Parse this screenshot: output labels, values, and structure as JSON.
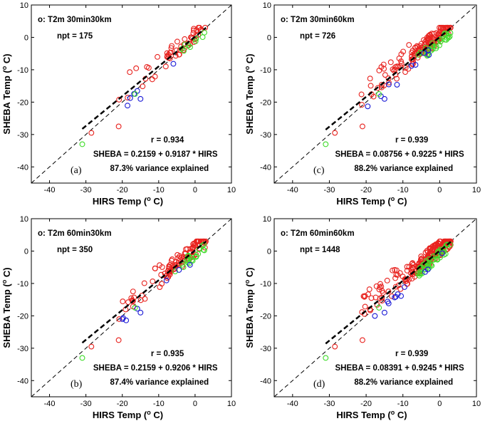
{
  "chart_data": [
    {
      "type": "scatter",
      "panel_label": "(a)",
      "legend": "o: T2m 30min30km",
      "npt": "npt = 175",
      "r_text": "r = 0.934",
      "fit_text": "SHEBA = 0.2159 + 0.9187 * HIRS",
      "variance_text": "87.3% variance explained",
      "xlabel": "HIRS Temp (",
      "xlabel_sup": "o",
      "xlabel_tail": " C)",
      "ylabel": "SHEBA Temp (",
      "ylabel_sup": "o",
      "ylabel_tail": " C)",
      "xlim": [
        -45,
        10
      ],
      "ylim": [
        -45,
        10
      ],
      "xticks": [
        "-40",
        "-30",
        "-20",
        "-10",
        "0",
        "10"
      ],
      "yticks": [
        "10",
        "0",
        "-10",
        "-20",
        "-30",
        "-40"
      ],
      "fit": {
        "intercept": 0.2159,
        "slope": 0.9187,
        "x_range": [
          -31,
          3
        ]
      },
      "one_to_one": true,
      "density": 1,
      "colors": {
        "red": "#e8231f",
        "green": "#3fdc2a",
        "blue": "#1a1ad6"
      }
    },
    {
      "type": "scatter",
      "panel_label": "(c)",
      "legend": "o: T2m 30min60km",
      "npt": "npt = 726",
      "r_text": "r = 0.939",
      "fit_text": "SHEBA = 0.08756 + 0.9225 * HIRS",
      "variance_text": "88.2% variance explained",
      "xlabel": "HIRS Temp (",
      "xlabel_sup": "o",
      "xlabel_tail": " C)",
      "ylabel": "SHEBA Temp (",
      "ylabel_sup": "o",
      "ylabel_tail": " C)",
      "xlim": [
        -45,
        10
      ],
      "ylim": [
        -45,
        10
      ],
      "xticks": [
        "-40",
        "-30",
        "-20",
        "-10",
        "0",
        "10"
      ],
      "yticks": [
        "10",
        "0",
        "-10",
        "-20",
        "-30",
        "-40"
      ],
      "fit": {
        "intercept": 0.08756,
        "slope": 0.9225,
        "x_range": [
          -31,
          3
        ]
      },
      "one_to_one": true,
      "density": 3,
      "colors": {
        "red": "#e8231f",
        "green": "#3fdc2a",
        "blue": "#1a1ad6"
      }
    },
    {
      "type": "scatter",
      "panel_label": "(b)",
      "legend": "o: T2m 60min30km",
      "npt": "npt = 350",
      "r_text": "r = 0.935",
      "fit_text": "SHEBA = 0.2159 + 0.9206 * HIRS",
      "variance_text": "87.4% variance explained",
      "xlabel": "HIRS Temp (",
      "xlabel_sup": "o",
      "xlabel_tail": " C)",
      "ylabel": "SHEBA Temp (",
      "ylabel_sup": "o",
      "ylabel_tail": " C)",
      "xlim": [
        -45,
        10
      ],
      "ylim": [
        -45,
        10
      ],
      "xticks": [
        "-40",
        "-30",
        "-20",
        "-10",
        "0",
        "10"
      ],
      "yticks": [
        "10",
        "0",
        "-10",
        "-20",
        "-30",
        "-40"
      ],
      "fit": {
        "intercept": 0.2159,
        "slope": 0.9206,
        "x_range": [
          -31,
          3
        ]
      },
      "one_to_one": true,
      "density": 2,
      "colors": {
        "red": "#e8231f",
        "green": "#3fdc2a",
        "blue": "#1a1ad6"
      }
    },
    {
      "type": "scatter",
      "panel_label": "(d)",
      "legend": "o: T2m 60min60km",
      "npt": "npt = 1448",
      "r_text": "r = 0.939",
      "fit_text": "SHEBA = 0.08391 + 0.9245 * HIRS",
      "variance_text": "88.2% variance explained",
      "xlabel": "HIRS Temp (",
      "xlabel_sup": "o",
      "xlabel_tail": " C)",
      "ylabel": "SHEBA Temp (",
      "ylabel_sup": "o",
      "ylabel_tail": " C)",
      "xlim": [
        -45,
        10
      ],
      "ylim": [
        -45,
        10
      ],
      "xticks": [
        "-40",
        "-30",
        "-20",
        "-10",
        "0",
        "10"
      ],
      "yticks": [
        "10",
        "0",
        "-10",
        "-20",
        "-30",
        "-40"
      ],
      "fit": {
        "intercept": 0.08391,
        "slope": 0.9245,
        "x_range": [
          -31,
          3
        ]
      },
      "one_to_one": true,
      "density": 4,
      "colors": {
        "red": "#e8231f",
        "green": "#3fdc2a",
        "blue": "#1a1ad6"
      }
    }
  ]
}
